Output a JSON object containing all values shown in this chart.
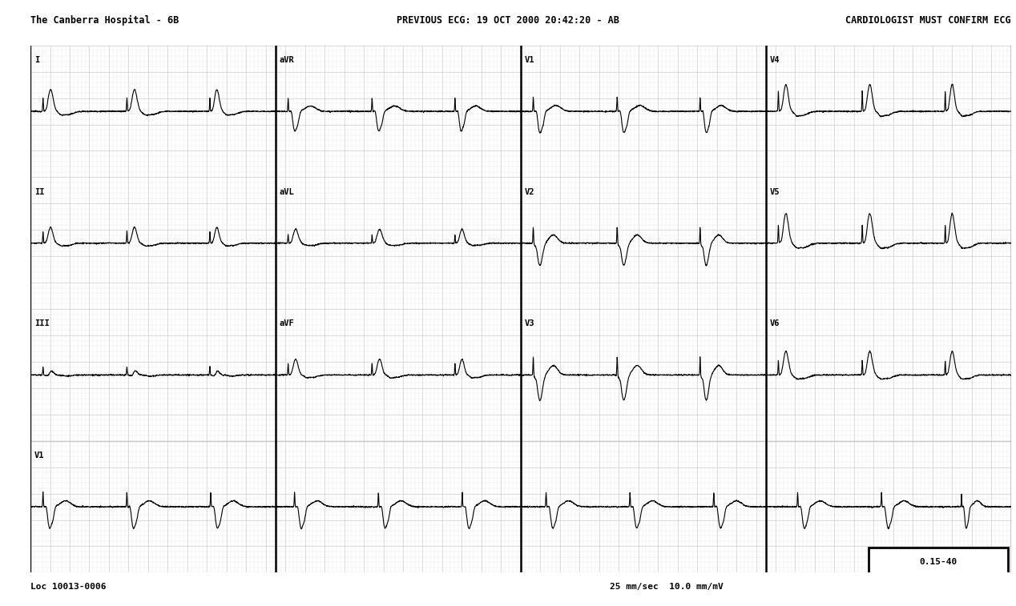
{
  "title_center": "PREVIOUS ECG: 19 OCT 2000 20:42:20 - AB",
  "title_left": "The Canberra Hospital - 6B",
  "title_right": "CARDIOLOGIST MUST CONFIRM ECG",
  "bottom_left": "Loc 10013-0006",
  "bottom_center": "25 mm/sec  10.0 mm/mV",
  "bottom_right": "0.15-40",
  "bg_color": "#ffffff",
  "grid_major_color": "#c8c8c8",
  "grid_minor_color": "#e0e0e0",
  "line_color": "#000000",
  "lead_labels": [
    "I",
    "aVR",
    "V1",
    "V4",
    "II",
    "aVL",
    "V2",
    "V5",
    "III",
    "aVF",
    "V3",
    "V6"
  ],
  "rhythm_label": "V1",
  "heart_rate": 70,
  "paper_speed": 25,
  "title_fontsize": 8,
  "label_fontsize": 8
}
